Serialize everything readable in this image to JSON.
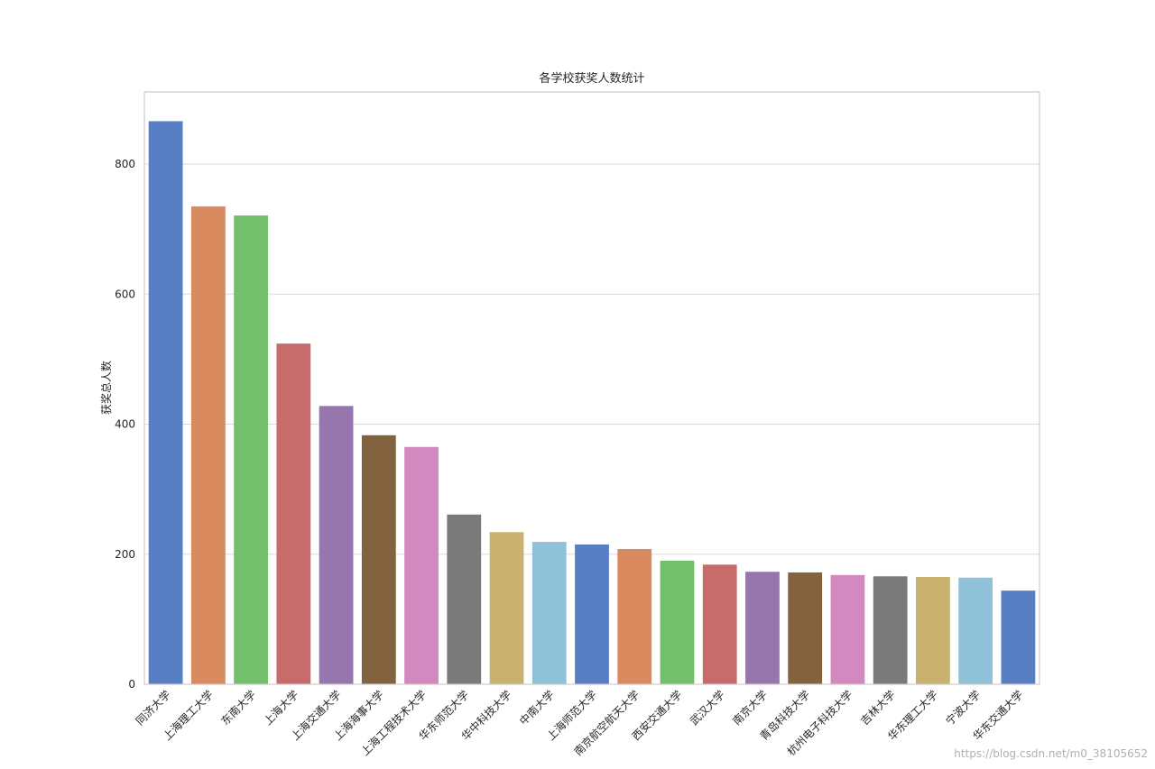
{
  "chart_data": {
    "type": "bar",
    "title": "各学校获奖人数统计",
    "ylabel": "获奖总人数",
    "categories": [
      "同济大学",
      "上海理工大学",
      "东南大学",
      "上海大学",
      "上海交通大学",
      "上海海事大学",
      "上海工程技术大学",
      "华东师范大学",
      "华中科技大学",
      "中南大学",
      "上海师范大学",
      "南京航空航天大学",
      "西安交通大学",
      "武汉大学",
      "南京大学",
      "青岛科技大学",
      "杭州电子科技大学",
      "吉林大学",
      "华东理工大学",
      "宁波大学",
      "华东交通大学"
    ],
    "values": [
      866,
      735,
      721,
      524,
      428,
      383,
      365,
      261,
      234,
      219,
      215,
      208,
      190,
      184,
      173,
      172,
      168,
      166,
      165,
      164,
      144
    ],
    "colors": [
      "#587ec4",
      "#d98a5f",
      "#73bf6c",
      "#c86b6b",
      "#9676ad",
      "#83623f",
      "#d189c0",
      "#7a7a7a",
      "#c9b26f",
      "#8fc2d8",
      "#587ec4",
      "#d98a5f",
      "#73bf6c",
      "#c86b6b",
      "#9676ad",
      "#83623f",
      "#d189c0",
      "#7a7a7a",
      "#c9b26f",
      "#8fc2d8",
      "#587ec4"
    ],
    "ylim": [
      0,
      911
    ],
    "yticks": [
      0,
      200,
      400,
      600,
      800
    ],
    "grid": true,
    "watermark": "https://blog.csdn.net/m0_38105652"
  }
}
